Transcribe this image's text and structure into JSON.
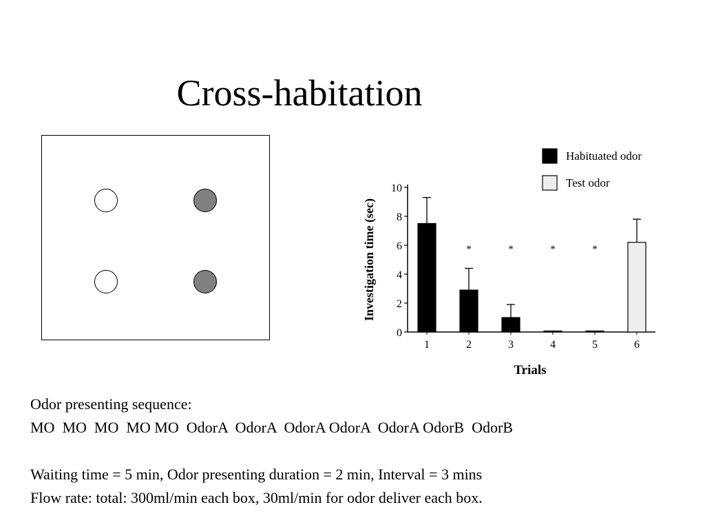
{
  "slide": {
    "title": "Cross-habitation",
    "lines": [
      "Odor presenting sequence:",
      "MO  MO  MO  MO MO  OdorA  OdorA  OdorA OdorA  OdorA OdorB  OdorB",
      "Waiting time = 5 min, Odor presenting duration = 2 min, Interval = 3 mins",
      "Flow rate: total: 300ml/min each box, 30ml/min for odor deliver each box."
    ]
  },
  "diagram": {
    "dots": [
      {
        "fill": "white"
      },
      {
        "fill": "gray"
      },
      {
        "fill": "white"
      },
      {
        "fill": "gray"
      }
    ],
    "colors": {
      "white": "#ffffff",
      "gray": "#808080"
    }
  },
  "chart_data": {
    "type": "bar",
    "xlabel": "Trials",
    "ylabel": "Investigation time (sec)",
    "ylim": [
      0,
      10
    ],
    "yticks": [
      0,
      2,
      4,
      6,
      8,
      10
    ],
    "categories": [
      "1",
      "2",
      "3",
      "4",
      "5",
      "6"
    ],
    "values": [
      7.5,
      2.9,
      1.0,
      0.05,
      0.05,
      6.2
    ],
    "errors": [
      1.8,
      1.5,
      0.9,
      0,
      0,
      1.6
    ],
    "kinds": [
      "habituated",
      "habituated",
      "habituated",
      "habituated",
      "habituated",
      "test"
    ],
    "significance": [
      "",
      "*",
      "*",
      "*",
      "*",
      ""
    ],
    "legend": [
      {
        "key": "habituated",
        "label": "Habituated odor",
        "color": "#000000"
      },
      {
        "key": "test",
        "label": "Test odor",
        "color": "#eeeeee"
      }
    ],
    "legend_position": "top-right",
    "grid": false
  }
}
